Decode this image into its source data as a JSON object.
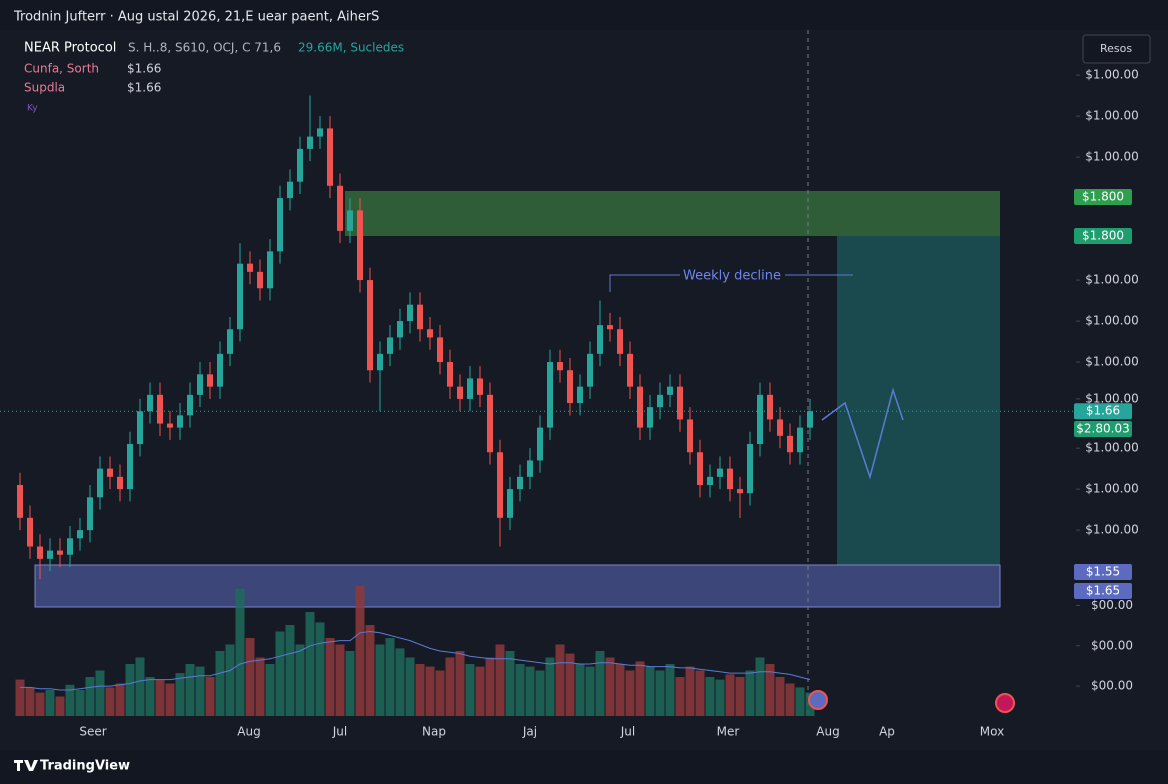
{
  "header": {
    "title": "Trodnin Jufterr · Aug ustal 2026, 21,E uear paent, AiherS",
    "button": "Resos",
    "logo": "TradingView"
  },
  "legend": {
    "symbol": "NEAR Protocol",
    "ohlc": "S.  H..8, S610, OCJ, C 71,6",
    "volume": "29.66M, Sucledes",
    "rows": [
      {
        "name": "Cunfa, Sorth",
        "value": "$1.66"
      },
      {
        "name": "Supdla",
        "value": "$1.66"
      }
    ],
    "icon": "Ky"
  },
  "chart_data": {
    "type": "candlestick",
    "up_color": "#26a69a",
    "down_color": "#ef5350",
    "grid": false,
    "open": [
      1.48,
      1.4,
      1.33,
      1.3,
      1.32,
      1.31,
      1.35,
      1.37,
      1.45,
      1.52,
      1.5,
      1.47,
      1.58,
      1.66,
      1.7,
      1.63,
      1.62,
      1.65,
      1.7,
      1.75,
      1.72,
      1.8,
      1.86,
      2.02,
      2.0,
      1.96,
      2.05,
      2.18,
      2.22,
      2.3,
      2.33,
      2.35,
      2.21,
      2.1,
      2.15,
      1.98,
      1.76,
      1.8,
      1.84,
      1.88,
      1.92,
      1.86,
      1.84,
      1.78,
      1.72,
      1.69,
      1.74,
      1.7,
      1.56,
      1.4,
      1.47,
      1.5,
      1.54,
      1.62,
      1.78,
      1.76,
      1.68,
      1.72,
      1.8,
      1.87,
      1.86,
      1.8,
      1.72,
      1.62,
      1.67,
      1.7,
      1.72,
      1.64,
      1.56,
      1.48,
      1.5,
      1.52,
      1.47,
      1.46,
      1.58,
      1.7,
      1.64,
      1.6,
      1.56,
      1.62
    ],
    "high": [
      1.51,
      1.43,
      1.36,
      1.35,
      1.35,
      1.38,
      1.4,
      1.48,
      1.55,
      1.55,
      1.53,
      1.61,
      1.69,
      1.73,
      1.73,
      1.66,
      1.68,
      1.73,
      1.78,
      1.78,
      1.83,
      1.89,
      2.07,
      2.05,
      2.03,
      2.08,
      2.21,
      2.25,
      2.33,
      2.43,
      2.38,
      2.38,
      2.24,
      2.18,
      2.18,
      2.01,
      1.83,
      1.87,
      1.91,
      1.95,
      1.95,
      1.89,
      1.87,
      1.81,
      1.75,
      1.77,
      1.77,
      1.73,
      1.59,
      1.5,
      1.53,
      1.57,
      1.65,
      1.81,
      1.81,
      1.79,
      1.75,
      1.83,
      1.93,
      1.9,
      1.89,
      1.83,
      1.75,
      1.7,
      1.73,
      1.75,
      1.75,
      1.67,
      1.59,
      1.53,
      1.55,
      1.55,
      1.5,
      1.61,
      1.73,
      1.73,
      1.67,
      1.63,
      1.65,
      1.69
    ],
    "low": [
      1.37,
      1.3,
      1.25,
      1.27,
      1.28,
      1.28,
      1.32,
      1.34,
      1.42,
      1.47,
      1.44,
      1.44,
      1.55,
      1.63,
      1.6,
      1.59,
      1.59,
      1.62,
      1.67,
      1.69,
      1.69,
      1.77,
      1.83,
      1.97,
      1.93,
      1.93,
      2.02,
      2.15,
      2.19,
      2.27,
      2.3,
      2.18,
      2.07,
      2.07,
      1.95,
      1.73,
      1.66,
      1.77,
      1.81,
      1.85,
      1.83,
      1.81,
      1.75,
      1.69,
      1.66,
      1.66,
      1.67,
      1.53,
      1.33,
      1.37,
      1.44,
      1.47,
      1.51,
      1.59,
      1.73,
      1.65,
      1.65,
      1.69,
      1.77,
      1.83,
      1.77,
      1.69,
      1.59,
      1.59,
      1.64,
      1.67,
      1.61,
      1.53,
      1.45,
      1.45,
      1.47,
      1.44,
      1.4,
      1.43,
      1.55,
      1.61,
      1.57,
      1.53,
      1.53,
      1.59
    ],
    "close": [
      1.4,
      1.33,
      1.3,
      1.32,
      1.31,
      1.35,
      1.37,
      1.45,
      1.52,
      1.5,
      1.47,
      1.58,
      1.66,
      1.7,
      1.63,
      1.62,
      1.65,
      1.7,
      1.75,
      1.72,
      1.8,
      1.86,
      2.02,
      2.0,
      1.96,
      2.05,
      2.18,
      2.22,
      2.3,
      2.33,
      2.35,
      2.21,
      2.1,
      2.15,
      1.98,
      1.76,
      1.8,
      1.84,
      1.88,
      1.92,
      1.86,
      1.84,
      1.78,
      1.72,
      1.69,
      1.74,
      1.7,
      1.56,
      1.4,
      1.47,
      1.5,
      1.54,
      1.62,
      1.78,
      1.76,
      1.68,
      1.72,
      1.8,
      1.87,
      1.86,
      1.8,
      1.72,
      1.62,
      1.67,
      1.7,
      1.72,
      1.64,
      1.56,
      1.48,
      1.5,
      1.52,
      1.47,
      1.46,
      1.58,
      1.7,
      1.64,
      1.6,
      1.56,
      1.62,
      1.66
    ],
    "ylim": [
      1.18,
      2.59
    ],
    "yticks": [
      {
        "value": 2.48,
        "label": "$1.00.00"
      },
      {
        "value": 2.38,
        "label": "$1.00.00"
      },
      {
        "value": 2.28,
        "label": "$1.00.00"
      },
      {
        "value": 1.98,
        "label": "$1.00.00"
      },
      {
        "value": 1.88,
        "label": "$1.00.00"
      },
      {
        "value": 1.78,
        "label": "$1.00.00"
      },
      {
        "value": 1.69,
        "label": "$1.00.00"
      },
      {
        "value": 1.57,
        "label": "$1.00.00"
      },
      {
        "value": 1.47,
        "label": "$1.00.00"
      },
      {
        "value": 1.37,
        "label": "$1.00.00"
      }
    ],
    "last_price": 1.66,
    "last_price_label": "$1.66",
    "price_badges": [
      "$1.800",
      "$1.800",
      "$2.80.03",
      "$1.55",
      "$1.65"
    ],
    "annotation": "Weekly decline",
    "time_labels": [
      "Seer",
      "Aug",
      "Jul",
      "Nap",
      "Jaj",
      "Jul",
      "Mer",
      "Aug",
      "Ap",
      "Mox"
    ],
    "volume": {
      "values": [
        28,
        22,
        18,
        20,
        15,
        24,
        20,
        30,
        35,
        22,
        25,
        40,
        45,
        30,
        28,
        25,
        33,
        40,
        38,
        30,
        50,
        55,
        98,
        60,
        45,
        40,
        65,
        70,
        55,
        80,
        72,
        60,
        55,
        50,
        100,
        70,
        55,
        60,
        52,
        45,
        40,
        38,
        35,
        45,
        50,
        40,
        38,
        45,
        55,
        50,
        40,
        38,
        35,
        45,
        55,
        48,
        40,
        38,
        50,
        45,
        40,
        35,
        42,
        38,
        35,
        40,
        30,
        38,
        35,
        30,
        28,
        32,
        30,
        35,
        45,
        40,
        30,
        25,
        22,
        18
      ],
      "ma": [
        22,
        22,
        21,
        21,
        20,
        20,
        21,
        22,
        23,
        23,
        24,
        25,
        27,
        28,
        28,
        28,
        29,
        30,
        31,
        31,
        33,
        35,
        40,
        42,
        43,
        44,
        46,
        48,
        50,
        54,
        56,
        57,
        58,
        58,
        64,
        65,
        64,
        62,
        60,
        58,
        55,
        52,
        50,
        49,
        48,
        46,
        45,
        44,
        44,
        44,
        43,
        42,
        41,
        40,
        41,
        41,
        40,
        40,
        41,
        41,
        40,
        39,
        39,
        38,
        38,
        38,
        37,
        37,
        36,
        35,
        34,
        33,
        33,
        33,
        34,
        34,
        33,
        32,
        30,
        28
      ],
      "up_color": "#1e6b5c",
      "down_color": "#8e3a3c",
      "ma_color": "#5b7bd5",
      "ylim": [
        0,
        100
      ],
      "yticks": [
        {
          "value": 85,
          "label": "$00.00"
        },
        {
          "value": 54,
          "label": "$00.00"
        },
        {
          "value": 23,
          "label": "$00.00"
        }
      ]
    }
  }
}
